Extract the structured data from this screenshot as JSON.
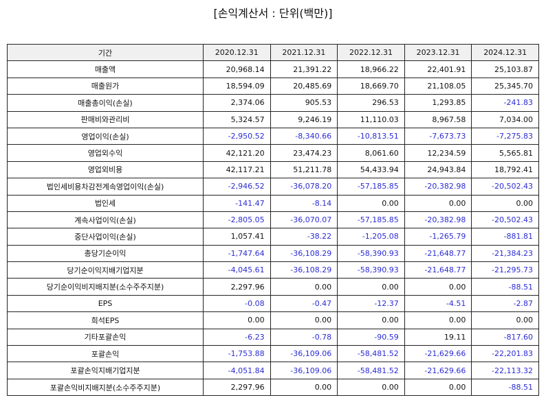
{
  "header": {
    "title": "[손익계산서 : 단위(백만)]"
  },
  "table": {
    "columns": [
      "기간",
      "2020.12.31",
      "2021.12.31",
      "2022.12.31",
      "2023.12.31",
      "2024.12.31"
    ],
    "rows": [
      [
        "매출액",
        "20,968.14",
        "21,391.22",
        "18,966.22",
        "22,401.91",
        "25,103.87"
      ],
      [
        "매출원가",
        "18,594.09",
        "20,485.69",
        "18,669.70",
        "21,108.05",
        "25,345.70"
      ],
      [
        "매출총이익(손실)",
        "2,374.06",
        "905.53",
        "296.53",
        "1,293.85",
        "-241.83"
      ],
      [
        "판매비와관리비",
        "5,324.57",
        "9,246.19",
        "11,110.03",
        "8,967.58",
        "7,034.00"
      ],
      [
        "영업이익(손실)",
        "-2,950.52",
        "-8,340.66",
        "-10,813.51",
        "-7,673.73",
        "-7,275.83"
      ],
      [
        "영업외수익",
        "42,121.20",
        "23,474.23",
        "8,061.60",
        "12,234.59",
        "5,565.81"
      ],
      [
        "영업외비용",
        "42,117.21",
        "51,211.78",
        "54,433.94",
        "24,943.84",
        "18,792.41"
      ],
      [
        "법인세비용차감전계속영업이익(손실)",
        "-2,946.52",
        "-36,078.20",
        "-57,185.85",
        "-20,382.98",
        "-20,502.43"
      ],
      [
        "법인세",
        "-141.47",
        "-8.14",
        "0.00",
        "0.00",
        "0.00"
      ],
      [
        "계속사업이익(손실)",
        "-2,805.05",
        "-36,070.07",
        "-57,185.85",
        "-20,382.98",
        "-20,502.43"
      ],
      [
        "중단사업이익(손실)",
        "1,057.41",
        "-38.22",
        "-1,205.08",
        "-1,265.79",
        "-881.81"
      ],
      [
        "총당기순이익",
        "-1,747.64",
        "-36,108.29",
        "-58,390.93",
        "-21,648.77",
        "-21,384.23"
      ],
      [
        "당기순이익지배기업지분",
        "-4,045.61",
        "-36,108.29",
        "-58,390.93",
        "-21,648.77",
        "-21,295.73"
      ],
      [
        "당기순이익비지배지분(소수주주지분)",
        "2,297.96",
        "0.00",
        "0.00",
        "0.00",
        "-88.51"
      ],
      [
        "EPS",
        "-0.08",
        "-0.47",
        "-12.37",
        "-4.51",
        "-2.87"
      ],
      [
        "희석EPS",
        "0.00",
        "0.00",
        "0.00",
        "0.00",
        "0.00"
      ],
      [
        "기타포괄손익",
        "-6.23",
        "-0.78",
        "-90.59",
        "19.11",
        "-817.60"
      ],
      [
        "포괄손익",
        "-1,753.88",
        "-36,109.06",
        "-58,481.52",
        "-21,629.66",
        "-22,201.83"
      ],
      [
        "포괄손익지배기업지분",
        "-4,051.84",
        "-36,109.06",
        "-58,481.52",
        "-21,629.66",
        "-22,113.32"
      ],
      [
        "포괄손익비지배지분(소수주주지분)",
        "2,297.96",
        "0.00",
        "0.00",
        "0.00",
        "-88.51"
      ]
    ]
  }
}
